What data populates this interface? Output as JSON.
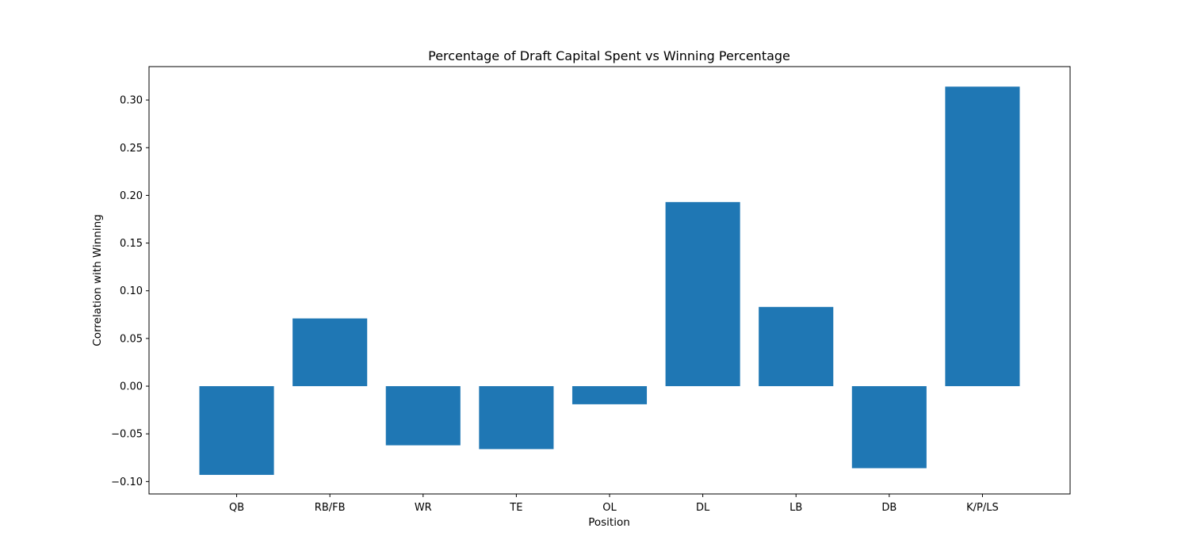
{
  "chart_data": {
    "type": "bar",
    "title": "Percentage of Draft Capital Spent vs Winning Percentage",
    "xlabel": "Position",
    "ylabel": "Correlation with Winning",
    "categories": [
      "QB",
      "RB/FB",
      "WR",
      "TE",
      "OL",
      "DL",
      "LB",
      "DB",
      "K/P/LS"
    ],
    "values": [
      -0.093,
      0.071,
      -0.062,
      -0.066,
      -0.019,
      0.193,
      0.083,
      -0.086,
      0.314
    ],
    "ylim": [
      -0.113,
      0.335
    ],
    "yticks": [
      -0.1,
      -0.05,
      0.0,
      0.05,
      0.1,
      0.15,
      0.2,
      0.25,
      0.3
    ],
    "ytick_labels": [
      "−0.10",
      "−0.05",
      "0.00",
      "0.05",
      "0.10",
      "0.15",
      "0.20",
      "0.25",
      "0.30"
    ],
    "bar_color": "#1f77b4",
    "grid": false,
    "legend": "none"
  }
}
